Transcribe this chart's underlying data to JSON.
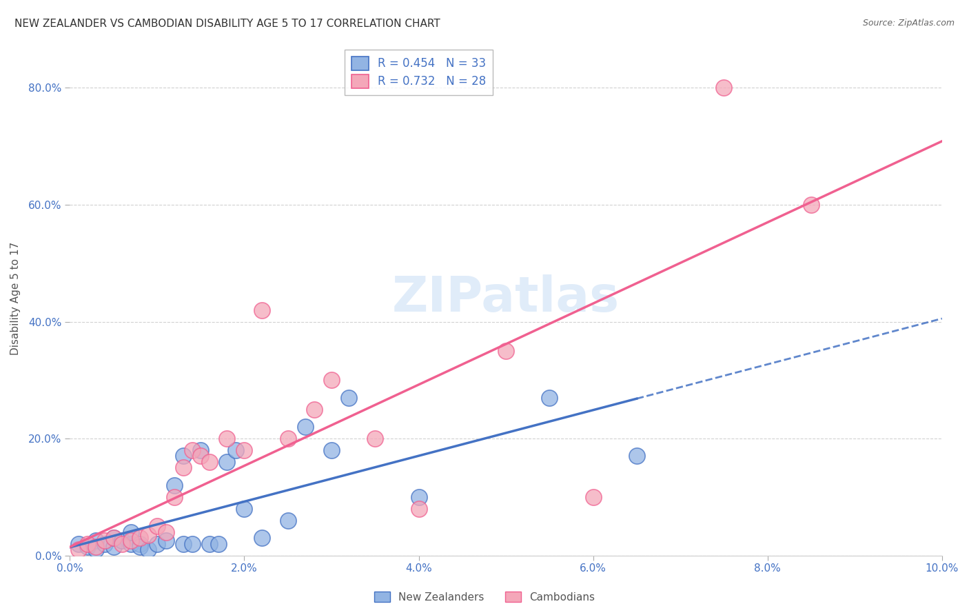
{
  "title": "NEW ZEALANDER VS CAMBODIAN DISABILITY AGE 5 TO 17 CORRELATION CHART",
  "source": "Source: ZipAtlas.com",
  "ylabel_label": "Disability Age 5 to 17",
  "xlim": [
    0.0,
    0.1
  ],
  "ylim": [
    0.0,
    0.88
  ],
  "legend_r_nz": "R = 0.454",
  "legend_n_nz": "N = 33",
  "legend_r_cam": "R = 0.732",
  "legend_n_cam": "N = 28",
  "color_nz": "#92b4e3",
  "color_cam": "#f4a7b9",
  "color_nz_line": "#4472c4",
  "color_cam_line": "#f06090",
  "nz_x": [
    0.001,
    0.002,
    0.003,
    0.003,
    0.004,
    0.005,
    0.005,
    0.006,
    0.007,
    0.007,
    0.008,
    0.008,
    0.009,
    0.01,
    0.011,
    0.012,
    0.013,
    0.013,
    0.014,
    0.015,
    0.016,
    0.017,
    0.018,
    0.019,
    0.02,
    0.022,
    0.025,
    0.027,
    0.03,
    0.032,
    0.04,
    0.055,
    0.065
  ],
  "nz_y": [
    0.02,
    0.015,
    0.025,
    0.01,
    0.02,
    0.015,
    0.03,
    0.025,
    0.02,
    0.04,
    0.02,
    0.015,
    0.01,
    0.02,
    0.025,
    0.12,
    0.02,
    0.17,
    0.02,
    0.18,
    0.02,
    0.02,
    0.16,
    0.18,
    0.08,
    0.03,
    0.06,
    0.22,
    0.18,
    0.27,
    0.1,
    0.27,
    0.17
  ],
  "cam_x": [
    0.001,
    0.002,
    0.003,
    0.004,
    0.005,
    0.006,
    0.007,
    0.008,
    0.009,
    0.01,
    0.011,
    0.012,
    0.013,
    0.014,
    0.015,
    0.016,
    0.018,
    0.02,
    0.022,
    0.025,
    0.028,
    0.03,
    0.035,
    0.04,
    0.05,
    0.06,
    0.075,
    0.085
  ],
  "cam_y": [
    0.01,
    0.02,
    0.015,
    0.025,
    0.03,
    0.02,
    0.025,
    0.03,
    0.035,
    0.05,
    0.04,
    0.1,
    0.15,
    0.18,
    0.17,
    0.16,
    0.2,
    0.18,
    0.42,
    0.2,
    0.25,
    0.3,
    0.2,
    0.08,
    0.35,
    0.1,
    0.8,
    0.6
  ],
  "background_color": "#ffffff",
  "grid_color": "#cccccc",
  "xticks": [
    0.0,
    0.02,
    0.04,
    0.06,
    0.08,
    0.1
  ],
  "yticks": [
    0.0,
    0.2,
    0.4,
    0.6,
    0.8
  ]
}
